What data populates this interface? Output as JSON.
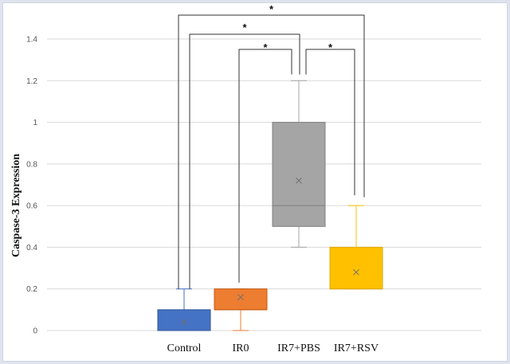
{
  "chart_data": {
    "type": "box",
    "title": "",
    "xlabel": "",
    "ylabel": "Caspase-3 Expression",
    "ylim": [
      0,
      1.4
    ],
    "yticks": [
      0,
      0.2,
      0.4,
      0.6,
      0.8,
      1,
      1.2,
      1.4
    ],
    "ytick_labels": [
      "0",
      "0.2",
      "0.4",
      "0.6",
      "0.8",
      "1",
      "1.2",
      "1.4"
    ],
    "grid": true,
    "categories": [
      "Control",
      "IR0",
      "IR7+PBS",
      "IR7+RSV"
    ],
    "boxes": [
      {
        "category": "Control",
        "min": 0,
        "q1": 0,
        "median": 0,
        "q3": 0.1,
        "max": 0.2,
        "mean": 0.04,
        "color": "#4472c4"
      },
      {
        "category": "IR0",
        "min": 0,
        "q1": 0.1,
        "median": 0.1,
        "q3": 0.2,
        "max": 0.2,
        "mean": 0.16,
        "color": "#ed7d31"
      },
      {
        "category": "IR7+PBS",
        "min": 0.4,
        "q1": 0.5,
        "median": 0.6,
        "q3": 1.0,
        "max": 1.2,
        "mean": 0.72,
        "color": "#a5a5a5"
      },
      {
        "category": "IR7+RSV",
        "min": 0.2,
        "q1": 0.2,
        "median": 0.2,
        "q3": 0.4,
        "max": 0.6,
        "mean": 0.28,
        "color": "#ffc000"
      }
    ],
    "significance": [
      {
        "from": "Control",
        "to": "IR7+RSV",
        "label": "*"
      },
      {
        "from": "Control",
        "to": "IR7+PBS",
        "label": "*"
      },
      {
        "from": "IR0",
        "to": "IR7+PBS",
        "label": "*"
      },
      {
        "from": "IR7+PBS",
        "to": "IR7+RSV",
        "label": "*"
      }
    ]
  }
}
